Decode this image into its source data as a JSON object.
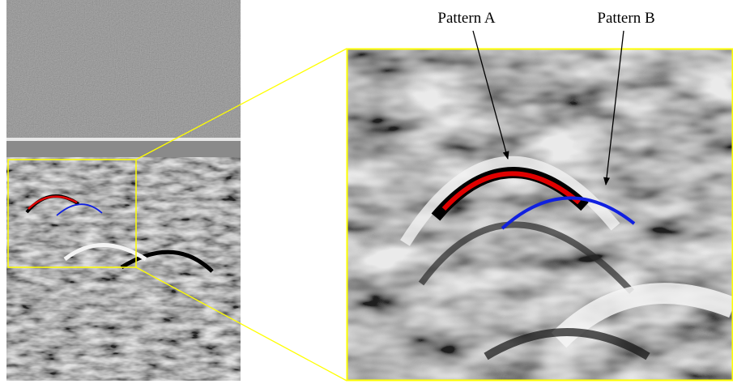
{
  "labels": {
    "pattern_a": "Pattern A",
    "pattern_b": "Pattern B"
  }
}
